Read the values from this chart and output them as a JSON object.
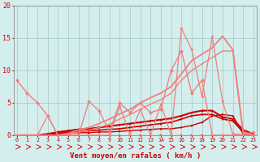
{
  "background_color": "#d4eeed",
  "grid_color": "#aacccc",
  "x_label": "Vent moyen/en rafales ( km/h )",
  "x_ticks": [
    0,
    1,
    2,
    3,
    4,
    5,
    6,
    7,
    8,
    9,
    10,
    11,
    12,
    13,
    14,
    15,
    16,
    17,
    18,
    19,
    20,
    21,
    22,
    23
  ],
  "ylim": [
    0,
    20
  ],
  "yticks": [
    0,
    5,
    10,
    15,
    20
  ],
  "series": [
    {
      "name": "flat_zero",
      "x": [
        0,
        1,
        2,
        3,
        4,
        5,
        6,
        7,
        8,
        9,
        10,
        11,
        12,
        13,
        14,
        15,
        16,
        17,
        18,
        19,
        20,
        21,
        22,
        23
      ],
      "y": [
        0,
        0,
        0,
        0,
        0,
        0,
        0,
        0,
        0,
        0,
        0,
        0,
        0,
        0,
        0,
        0,
        0,
        0,
        0,
        0,
        0,
        0,
        0,
        0
      ],
      "color": "#cc0000",
      "lw": 0.8,
      "marker": ">",
      "ms": 2.5
    },
    {
      "name": "dark_low1",
      "x": [
        0,
        1,
        2,
        3,
        4,
        5,
        6,
        7,
        8,
        9,
        10,
        11,
        12,
        13,
        14,
        15,
        16,
        17,
        18,
        19,
        20,
        21,
        22,
        23
      ],
      "y": [
        0,
        0,
        0,
        0,
        0.2,
        0.3,
        0.4,
        0.4,
        0.5,
        0.5,
        0.6,
        0.7,
        0.8,
        0.9,
        1.0,
        1.0,
        1.2,
        1.5,
        2.0,
        3.0,
        3.2,
        3.0,
        0.2,
        0.0
      ],
      "color": "#cc0000",
      "lw": 1.0,
      "marker": ">",
      "ms": 2.0
    },
    {
      "name": "dark_low2",
      "x": [
        0,
        1,
        2,
        3,
        4,
        5,
        6,
        7,
        8,
        9,
        10,
        11,
        12,
        13,
        14,
        15,
        16,
        17,
        18,
        19,
        20,
        21,
        22,
        23
      ],
      "y": [
        0,
        0,
        0,
        0.1,
        0.3,
        0.5,
        0.6,
        0.7,
        0.8,
        0.9,
        1.0,
        1.2,
        1.4,
        1.6,
        1.8,
        2.0,
        2.5,
        3.0,
        3.2,
        3.2,
        2.5,
        2.2,
        0.5,
        0.1
      ],
      "color": "#cc0000",
      "lw": 1.2,
      "marker": ">",
      "ms": 2.0
    },
    {
      "name": "dark_medium",
      "x": [
        0,
        1,
        2,
        3,
        4,
        5,
        6,
        7,
        8,
        9,
        10,
        11,
        12,
        13,
        14,
        15,
        16,
        17,
        18,
        19,
        20,
        21,
        22,
        23
      ],
      "y": [
        0,
        0,
        0,
        0.2,
        0.5,
        0.7,
        0.9,
        1.0,
        1.2,
        1.4,
        1.6,
        1.8,
        2.0,
        2.2,
        2.4,
        2.6,
        3.0,
        3.5,
        3.8,
        3.8,
        2.8,
        2.5,
        0.8,
        0.2
      ],
      "color": "#cc0000",
      "lw": 1.5,
      "marker": ">",
      "ms": 2.0
    },
    {
      "name": "salmon_zigzag",
      "x": [
        0,
        1,
        2,
        3,
        4,
        5,
        6,
        7,
        8,
        9,
        10,
        11,
        12,
        13,
        14,
        15,
        16,
        17,
        18,
        19,
        20,
        21,
        22,
        23
      ],
      "y": [
        8.5,
        6.5,
        5.0,
        3.0,
        0.0,
        0.0,
        0.0,
        5.2,
        3.8,
        0.5,
        5.0,
        3.5,
        5.0,
        3.5,
        4.0,
        10.0,
        13.0,
        6.5,
        8.5,
        0.0,
        0.0,
        0.0,
        0.0,
        0.0
      ],
      "color": "#f08080",
      "lw": 1.0,
      "marker": "D",
      "ms": 2.5
    },
    {
      "name": "salmon_upper1",
      "x": [
        0,
        1,
        2,
        3,
        4,
        5,
        6,
        7,
        8,
        9,
        10,
        11,
        12,
        13,
        14,
        15,
        16,
        17,
        18,
        19,
        20,
        21,
        22,
        23
      ],
      "y": [
        0,
        0,
        0,
        0,
        0,
        0.3,
        0.8,
        1.2,
        1.8,
        2.5,
        3.3,
        4.0,
        5.0,
        5.8,
        6.5,
        7.5,
        9.5,
        11.5,
        12.5,
        13.5,
        15.3,
        13.2,
        0.5,
        0.1
      ],
      "color": "#f08080",
      "lw": 1.3,
      "marker": null,
      "ms": 0
    },
    {
      "name": "salmon_upper2",
      "x": [
        0,
        1,
        2,
        3,
        4,
        5,
        6,
        7,
        8,
        9,
        10,
        11,
        12,
        13,
        14,
        15,
        16,
        17,
        18,
        19,
        20,
        21,
        22,
        23
      ],
      "y": [
        0,
        0,
        0,
        0,
        0,
        0.2,
        0.5,
        0.8,
        1.2,
        1.7,
        2.5,
        3.2,
        4.0,
        4.8,
        5.5,
        6.5,
        8.5,
        10.0,
        11.0,
        12.0,
        13.0,
        13.0,
        0.3,
        0.0
      ],
      "color": "#f08080",
      "lw": 1.0,
      "marker": null,
      "ms": 0
    },
    {
      "name": "salmon_jagged",
      "x": [
        0,
        1,
        2,
        3,
        4,
        5,
        6,
        7,
        8,
        9,
        10,
        11,
        12,
        13,
        14,
        15,
        16,
        17,
        18,
        19,
        20,
        21,
        22,
        23
      ],
      "y": [
        0,
        0,
        0,
        3.0,
        0,
        0,
        0,
        0,
        0,
        0,
        4.5,
        0,
        4.0,
        0,
        4.8,
        0,
        16.5,
        13.2,
        6.0,
        15.2,
        5.2,
        0.2,
        0.1,
        0.5
      ],
      "color": "#f08080",
      "lw": 0.9,
      "marker": "D",
      "ms": 2.0
    }
  ],
  "arrow_color": "#cc0000"
}
